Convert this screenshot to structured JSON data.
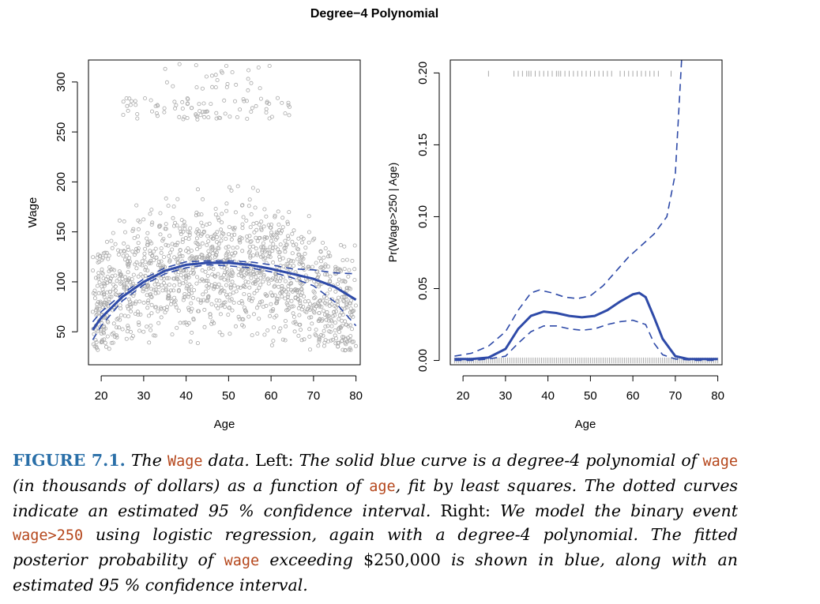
{
  "figure_title": "Degree−4 Polynomial",
  "chart_data": [
    {
      "type": "scatter",
      "panel": "left",
      "xlabel": "Age",
      "ylabel": "Wage",
      "xlim": [
        17,
        81
      ],
      "ylim": [
        17,
        322
      ],
      "xticks": [
        "20",
        "30",
        "40",
        "50",
        "60",
        "70",
        "80"
      ],
      "yticks": [
        "50",
        "100",
        "150",
        "200",
        "250",
        "300"
      ],
      "point_color": "#a9a9a9",
      "fit_color": "#2e4aa8",
      "fit_curve": {
        "name": "degree-4 polynomial fit",
        "x": [
          18,
          20,
          25,
          30,
          35,
          40,
          45,
          50,
          55,
          60,
          65,
          70,
          75,
          80
        ],
        "y": [
          52,
          64,
          85,
          100,
          111,
          117,
          119,
          119,
          117,
          113,
          108,
          103,
          95,
          82
        ]
      },
      "upper_band": {
        "x": [
          18,
          20,
          25,
          30,
          35,
          40,
          45,
          50,
          55,
          60,
          65,
          70,
          75,
          80
        ],
        "y": [
          60,
          70,
          88,
          103,
          114,
          120,
          121,
          121,
          120,
          117,
          113,
          112,
          109,
          108
        ]
      },
      "lower_band": {
        "x": [
          18,
          20,
          25,
          30,
          35,
          40,
          45,
          50,
          55,
          60,
          65,
          70,
          75,
          80
        ],
        "y": [
          42,
          56,
          81,
          97,
          108,
          114,
          117,
          116,
          114,
          110,
          104,
          96,
          80,
          56
        ]
      },
      "point_groups": [
        {
          "x_range": [
            18,
            80
          ],
          "y_range": [
            40,
            185
          ],
          "weight": 0.94
        },
        {
          "x_range": [
            25,
            66
          ],
          "y_range": [
            262,
            285
          ],
          "weight": 0.04
        },
        {
          "x_range": [
            35,
            60
          ],
          "y_range": [
            290,
            318
          ],
          "weight": 0.02
        }
      ]
    },
    {
      "type": "line",
      "panel": "right",
      "xlabel": "Age",
      "ylabel": "Pr(Wage>250 | Age)",
      "xlim": [
        17,
        81
      ],
      "ylim": [
        -0.003,
        0.209
      ],
      "xticks": [
        "20",
        "30",
        "40",
        "50",
        "60",
        "70",
        "80"
      ],
      "yticks": [
        "0.00",
        "0.05",
        "0.10",
        "0.15",
        "0.20"
      ],
      "fit_color": "#2e4aa8",
      "rug_color": "#a9a9a9",
      "fit_curve": {
        "x": [
          18,
          22,
          26,
          30,
          33,
          36,
          39,
          42,
          45,
          48,
          51,
          54,
          57,
          60,
          61.5,
          63,
          65,
          67,
          70,
          73,
          76,
          80
        ],
        "y": [
          0.001,
          0.001,
          0.002,
          0.008,
          0.022,
          0.031,
          0.034,
          0.033,
          0.031,
          0.03,
          0.031,
          0.035,
          0.041,
          0.046,
          0.047,
          0.044,
          0.03,
          0.015,
          0.003,
          0.001,
          0.001,
          0.001
        ]
      },
      "upper_band": {
        "x": [
          18,
          22,
          26,
          30,
          33,
          36,
          38,
          41,
          44,
          47,
          50,
          53,
          56,
          59,
          62,
          65,
          68,
          70,
          71.5
        ],
        "y": [
          0.003,
          0.005,
          0.01,
          0.02,
          0.035,
          0.047,
          0.049,
          0.047,
          0.044,
          0.043,
          0.045,
          0.052,
          0.062,
          0.072,
          0.08,
          0.088,
          0.1,
          0.13,
          0.21
        ]
      },
      "lower_band": {
        "x": [
          18,
          22,
          26,
          30,
          33,
          36,
          39,
          42,
          45,
          48,
          51,
          54,
          57,
          60,
          63,
          65,
          67,
          70,
          75,
          80
        ],
        "y": [
          0.0,
          0.0,
          0.001,
          0.003,
          0.012,
          0.02,
          0.024,
          0.024,
          0.022,
          0.021,
          0.022,
          0.025,
          0.027,
          0.028,
          0.025,
          0.012,
          0.004,
          0.001,
          0.0,
          0.0
        ]
      },
      "rug_top_ages": [
        26,
        32,
        33,
        34,
        35,
        35.5,
        36,
        37,
        38,
        39,
        40,
        41,
        42,
        42.5,
        43,
        44,
        45,
        46,
        47,
        48,
        49,
        50,
        51,
        52,
        53,
        54,
        55,
        57,
        58,
        59,
        60,
        61,
        62,
        63,
        64,
        65,
        66,
        69
      ]
    }
  ],
  "caption": {
    "label": "FIGURE 7.1.",
    "t1": " The ",
    "c1": "Wage",
    "t2": " data.",
    "t3": " Left: ",
    "t4": "The solid blue curve is a degree-4 polynomial of ",
    "c2": "wage",
    "t5": " (in thousands of dollars) as a function of ",
    "c3": "age",
    "t6": ", fit by least squares. The dotted curves indicate an estimated 95 % confidence interval.",
    "t7": " Right: ",
    "t8": "We model the binary event ",
    "c4": "wage>250",
    "t9": " using logistic regression, again with a degree-4 polynomial. The fitted posterior probability of ",
    "c5": "wage",
    "t10": " exceeding ",
    "t11": "$250,000",
    "t12": " is shown in blue, along with an estimated 95 % confidence interval."
  }
}
